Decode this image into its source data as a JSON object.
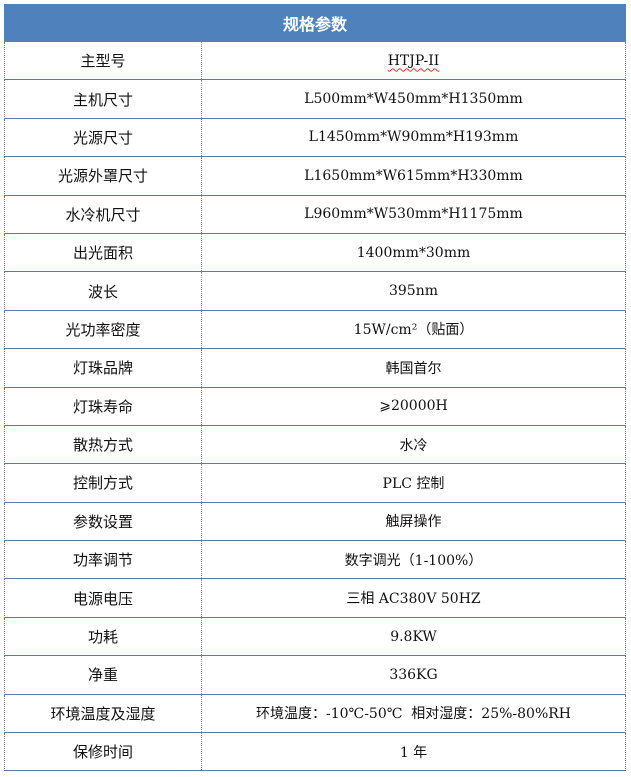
{
  "header": {
    "title": "规格参数"
  },
  "rows": [
    {
      "label": "主型号",
      "value": "HTJP-II"
    },
    {
      "label": "主机尺寸",
      "value": "L500mm*W450mm*H1350mm"
    },
    {
      "label": "光源尺寸",
      "value": "L1450mm*W90mm*H193mm"
    },
    {
      "label": "光源外罩尺寸",
      "value": "L1650mm*W615mm*H330mm"
    },
    {
      "label": "水冷机尺寸",
      "value": "L960mm*W530mm*H1175mm"
    },
    {
      "label": "出光面积",
      "value": "1400mm*30mm"
    },
    {
      "label": "波长",
      "value": "395nm"
    },
    {
      "label": "光功率密度",
      "value": "15W/cm²（贴面）"
    },
    {
      "label": "灯珠品牌",
      "value": "韩国首尔"
    },
    {
      "label": "灯珠寿命",
      "value": "⩾20000H"
    },
    {
      "label": "散热方式",
      "value": "水冷"
    },
    {
      "label": "控制方式",
      "value": "PLC 控制"
    },
    {
      "label": "参数设置",
      "value": "触屏操作"
    },
    {
      "label": "功率调节",
      "value": "数字调光（1-100%）"
    },
    {
      "label": "电源电压",
      "value": "三相 AC380V 50HZ"
    },
    {
      "label": "功耗",
      "value": "9.8KW"
    },
    {
      "label": "净重",
      "value": "336KG"
    },
    {
      "label": "环境温度及湿度",
      "value": "环境温度：-10℃-50℃  相对湿度：25%-80%RH"
    },
    {
      "label": "保修时间",
      "value": "1 年"
    }
  ],
  "colors": {
    "header_bg": "#4f81bd",
    "border": "#5b7aa6"
  }
}
